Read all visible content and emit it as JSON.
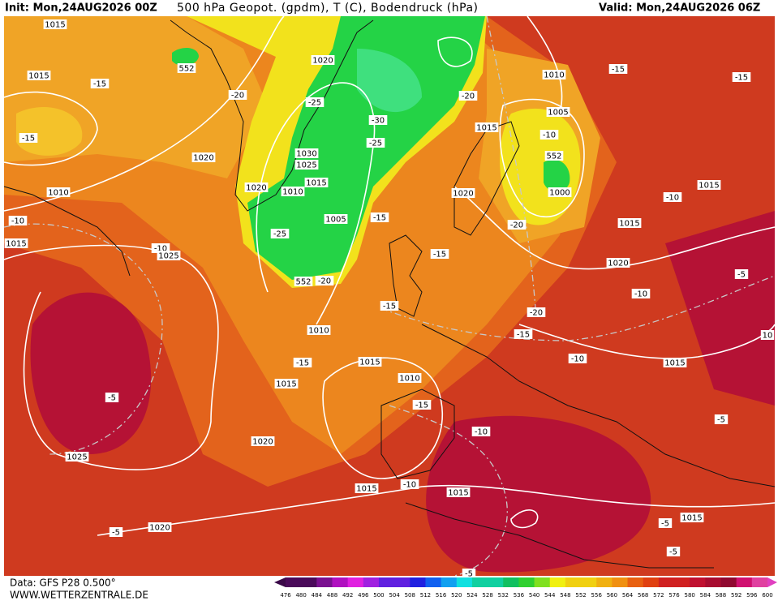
{
  "header": {
    "init": "Init: Mon,24AUG2026 00Z",
    "title": "500 hPa Geopot. (gpdm), T (C), Bodendruck (hPa)",
    "valid": "Valid: Mon,24AUG2026 06Z"
  },
  "map": {
    "labels": [
      "1015",
      "1015",
      "-15",
      "-15",
      "1010",
      "-10",
      "1015",
      "1020",
      "-20",
      "552",
      "1020",
      "-25",
      "-30",
      "-25",
      "1030",
      "1025",
      "1015",
      "1020",
      "1010",
      "1005",
      "-15",
      "-25",
      "552",
      "-20",
      "-10",
      "1025",
      "-20",
      "1010",
      "-15",
      "-15",
      "1005",
      "1015",
      "552",
      "1000",
      "-10",
      "1015",
      "-10",
      "1020",
      "-20",
      "1015",
      "1020",
      "-15",
      "-10",
      "-5",
      "-15",
      "-20",
      "1010",
      "-15",
      "-10",
      "1015",
      "10",
      "-15",
      "1015",
      "1010",
      "1015",
      "-15",
      "-5",
      "-5",
      "-10",
      "1020",
      "1025",
      "1015",
      "-10",
      "1015",
      "1015",
      "-5",
      "-5",
      "1020",
      "-5",
      "-5"
    ]
  },
  "footer": {
    "source": "Data: GFS P28 0.500°",
    "website": "WWW.WETTERZENTRALE.DE"
  },
  "colorbar": {
    "values": [
      476,
      480,
      484,
      488,
      492,
      496,
      500,
      504,
      508,
      512,
      516,
      520,
      524,
      528,
      532,
      536,
      540,
      544,
      548,
      552,
      556,
      560,
      564,
      568,
      572,
      576,
      580,
      584,
      588,
      592,
      596,
      600
    ]
  }
}
